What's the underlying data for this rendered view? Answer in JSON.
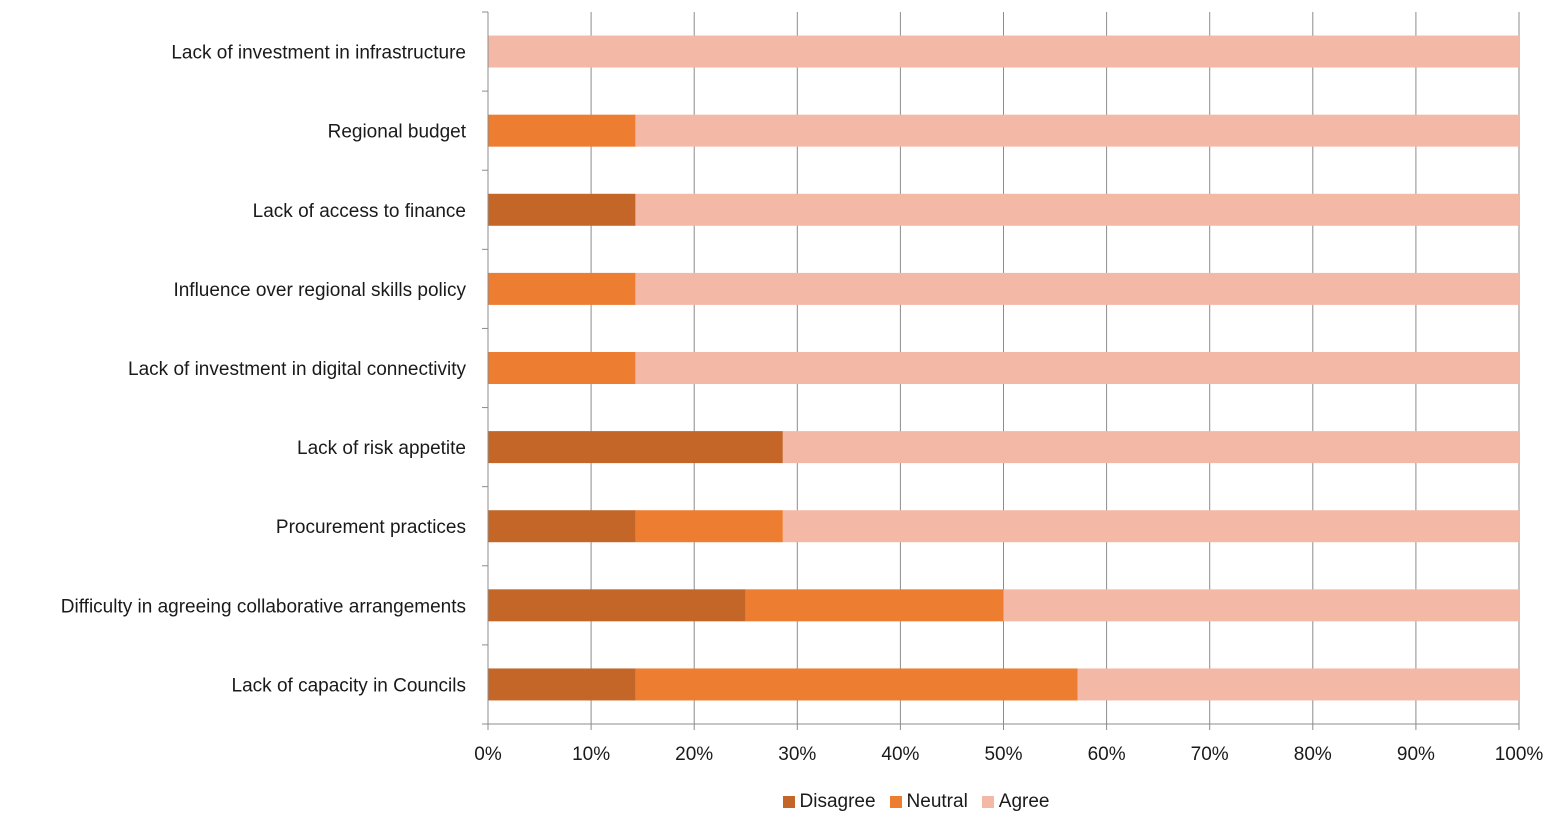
{
  "chart_data": {
    "type": "bar",
    "orientation": "horizontal",
    "stacked": "100%",
    "categories": [
      "Lack of investment in infrastructure",
      "Regional budget",
      "Lack of access to finance",
      "Influence over regional skills policy",
      "Lack of  investment in digital connectivity",
      "Lack of risk appetite",
      "Procurement practices",
      "Difficulty in agreeing collaborative arrangements",
      "Lack of capacity in Councils"
    ],
    "series": [
      {
        "name": "Disagree",
        "color": "#c46628",
        "values": [
          0,
          0,
          14.3,
          0,
          0,
          28.6,
          14.3,
          25,
          14.3
        ]
      },
      {
        "name": "Neutral",
        "color": "#ed7d31",
        "values": [
          0,
          14.3,
          0,
          14.3,
          14.3,
          0,
          14.3,
          25,
          42.9
        ]
      },
      {
        "name": "Agree",
        "color": "#f4b9a6",
        "values": [
          100,
          85.7,
          85.7,
          85.7,
          85.7,
          71.4,
          71.4,
          50,
          42.8
        ]
      }
    ],
    "xlim": [
      0,
      100
    ],
    "xticks": [
      "0%",
      "10%",
      "20%",
      "30%",
      "40%",
      "50%",
      "60%",
      "70%",
      "80%",
      "90%",
      "100%"
    ],
    "grid": "vertical",
    "legend_position": "bottom",
    "title": "",
    "xlabel": "",
    "ylabel": ""
  }
}
